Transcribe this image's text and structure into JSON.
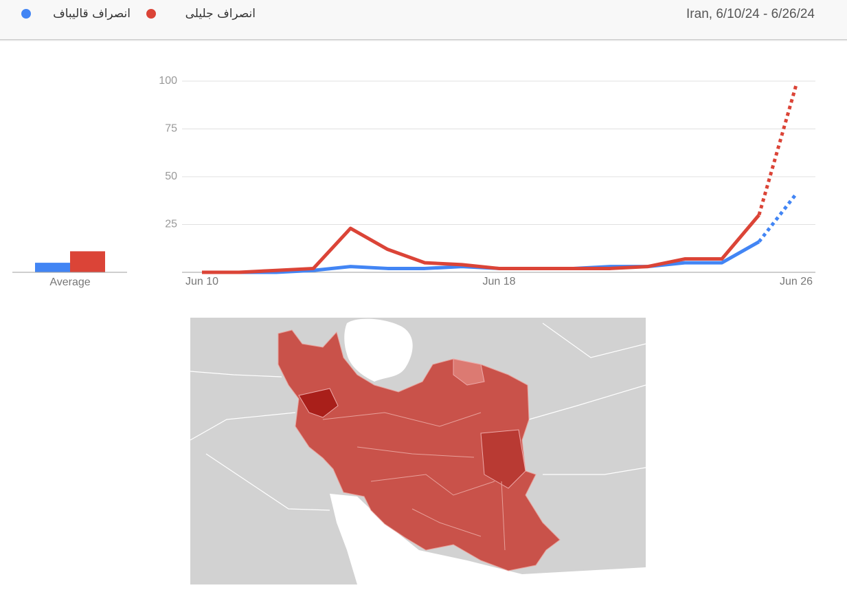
{
  "header": {
    "range": "Iran, 6/10/24 - 6/26/24"
  },
  "chart_data": [
    {
      "type": "line",
      "categories": [
        "Jun 10",
        null,
        null,
        null,
        null,
        null,
        null,
        null,
        "Jun 18",
        null,
        null,
        null,
        null,
        null,
        null,
        null,
        "Jun 26"
      ],
      "series": [
        {
          "name": "انصراف قالیباف",
          "color": "#4285f4",
          "values": [
            0,
            0,
            0,
            1,
            3,
            2,
            2,
            3,
            2,
            2,
            2,
            3,
            3,
            5,
            5,
            16,
            41
          ]
        },
        {
          "name": "انصراف جلیلی",
          "color": "#db4437",
          "values": [
            0,
            0,
            1,
            2,
            23,
            12,
            5,
            4,
            2,
            2,
            2,
            2,
            3,
            7,
            7,
            30,
            98
          ]
        }
      ],
      "ylim": [
        0,
        100
      ],
      "yticks": [
        25,
        50,
        75,
        100
      ],
      "grid": true,
      "partial_last_point": true
    },
    {
      "type": "bar",
      "categories": [
        "Average"
      ],
      "series": [
        {
          "color": "#4285f4",
          "values": [
            5
          ]
        },
        {
          "color": "#db4437",
          "values": [
            11
          ]
        }
      ],
      "ylim": [
        0,
        100
      ]
    }
  ]
}
